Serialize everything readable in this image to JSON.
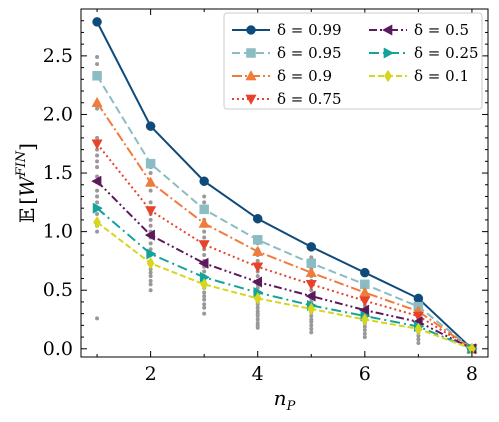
{
  "chart_data": {
    "type": "line",
    "xlabel": "n_P",
    "xlabel_main": "n",
    "xlabel_sub": "P",
    "ylabel": "E[W^{FIN}]",
    "ylabel_prefix": "𝔼",
    "ylabel_w": "W",
    "ylabel_sup": "FIN",
    "xlim": [
      0.7,
      8.3
    ],
    "ylim": [
      -0.07,
      2.9
    ],
    "xticks": [
      2,
      4,
      6,
      8
    ],
    "xtick_labels": [
      "2",
      "4",
      "6",
      "8"
    ],
    "yticks": [
      0.0,
      0.5,
      1.0,
      1.5,
      2.0,
      2.5
    ],
    "ytick_labels": [
      "0.0",
      "0.5",
      "1.0",
      "1.5",
      "2.0",
      "2.5"
    ],
    "legend_placement": "top-right",
    "x": [
      1,
      2,
      3,
      4,
      5,
      6,
      7,
      8
    ],
    "series": [
      {
        "name": "δ = 0.99",
        "color": "#0e4a7a",
        "dash": "",
        "marker": "circle",
        "values": [
          2.79,
          1.9,
          1.43,
          1.11,
          0.87,
          0.65,
          0.43,
          0.0
        ]
      },
      {
        "name": "δ = 0.95",
        "color": "#8bbcc4",
        "dash": "8,4",
        "marker": "square",
        "values": [
          2.33,
          1.58,
          1.19,
          0.93,
          0.73,
          0.55,
          0.36,
          0.0
        ]
      },
      {
        "name": "δ = 0.9",
        "color": "#f07c3c",
        "dash": "10,3,2,3",
        "marker": "triangle-up",
        "values": [
          2.1,
          1.42,
          1.07,
          0.83,
          0.65,
          0.48,
          0.32,
          0.0
        ]
      },
      {
        "name": "δ = 0.75",
        "color": "#e8432a",
        "dash": "2,3",
        "marker": "triangle-down",
        "values": [
          1.75,
          1.18,
          0.89,
          0.7,
          0.55,
          0.41,
          0.28,
          0.0
        ]
      },
      {
        "name": "δ = 0.5",
        "color": "#5c1a5c",
        "dash": "8,3,2,3,2,3",
        "marker": "triangle-left",
        "values": [
          1.43,
          0.97,
          0.73,
          0.57,
          0.45,
          0.33,
          0.23,
          0.0
        ]
      },
      {
        "name": "δ = 0.25",
        "color": "#13a39a",
        "dash": "10,4,2,4",
        "marker": "triangle-right",
        "values": [
          1.2,
          0.81,
          0.61,
          0.48,
          0.37,
          0.28,
          0.19,
          0.0
        ]
      },
      {
        "name": "δ = 0.1",
        "color": "#d6d61e",
        "dash": "6,3",
        "marker": "diamond",
        "values": [
          1.08,
          0.73,
          0.55,
          0.43,
          0.34,
          0.25,
          0.17,
          0.0
        ]
      }
    ],
    "scatter_background": {
      "color": "#999999",
      "points": [
        [
          1,
          2.49
        ],
        [
          1,
          2.43
        ],
        [
          1,
          2.05
        ],
        [
          1,
          1.8
        ],
        [
          1,
          1.7
        ],
        [
          1,
          1.65
        ],
        [
          1,
          1.6
        ],
        [
          1,
          1.55
        ],
        [
          1,
          1.47
        ],
        [
          1,
          1.35
        ],
        [
          1,
          1.3
        ],
        [
          1,
          1.25
        ],
        [
          1,
          1.15
        ],
        [
          1,
          1.05
        ],
        [
          1,
          1.0
        ],
        [
          1,
          0.26
        ],
        [
          2,
          1.55
        ],
        [
          2,
          1.5
        ],
        [
          2,
          1.4
        ],
        [
          2,
          1.35
        ],
        [
          2,
          1.25
        ],
        [
          2,
          1.15
        ],
        [
          2,
          1.1
        ],
        [
          2,
          1.05
        ],
        [
          2,
          1.0
        ],
        [
          2,
          0.95
        ],
        [
          2,
          0.9
        ],
        [
          2,
          0.85
        ],
        [
          2,
          0.8
        ],
        [
          2,
          0.75
        ],
        [
          2,
          0.72
        ],
        [
          2,
          0.68
        ],
        [
          2,
          0.65
        ],
        [
          2,
          0.62
        ],
        [
          2,
          0.58
        ],
        [
          2,
          0.55
        ],
        [
          2,
          0.5
        ],
        [
          3,
          1.3
        ],
        [
          3,
          1.25
        ],
        [
          3,
          1.18
        ],
        [
          3,
          1.1
        ],
        [
          3,
          1.05
        ],
        [
          3,
          1.0
        ],
        [
          3,
          0.95
        ],
        [
          3,
          0.9
        ],
        [
          3,
          0.85
        ],
        [
          3,
          0.8
        ],
        [
          3,
          0.75
        ],
        [
          3,
          0.7
        ],
        [
          3,
          0.66
        ],
        [
          3,
          0.62
        ],
        [
          3,
          0.58
        ],
        [
          3,
          0.55
        ],
        [
          3,
          0.52
        ],
        [
          3,
          0.48
        ],
        [
          3,
          0.45
        ],
        [
          3,
          0.42
        ],
        [
          3,
          0.38
        ],
        [
          3,
          0.35
        ],
        [
          3,
          0.3
        ],
        [
          4,
          0.95
        ],
        [
          4,
          0.9
        ],
        [
          4,
          0.85
        ],
        [
          4,
          0.8
        ],
        [
          4,
          0.75
        ],
        [
          4,
          0.7
        ],
        [
          4,
          0.66
        ],
        [
          4,
          0.62
        ],
        [
          4,
          0.58
        ],
        [
          4,
          0.55
        ],
        [
          4,
          0.52
        ],
        [
          4,
          0.48
        ],
        [
          4,
          0.45
        ],
        [
          4,
          0.42
        ],
        [
          4,
          0.4
        ],
        [
          4,
          0.38
        ],
        [
          4,
          0.35
        ],
        [
          4,
          0.32
        ],
        [
          4,
          0.3
        ],
        [
          4,
          0.28
        ],
        [
          4,
          0.25
        ],
        [
          4,
          0.22
        ],
        [
          4,
          0.2
        ],
        [
          4,
          0.18
        ],
        [
          5,
          0.78
        ],
        [
          5,
          0.72
        ],
        [
          5,
          0.68
        ],
        [
          5,
          0.62
        ],
        [
          5,
          0.58
        ],
        [
          5,
          0.55
        ],
        [
          5,
          0.5
        ],
        [
          5,
          0.46
        ],
        [
          5,
          0.43
        ],
        [
          5,
          0.4
        ],
        [
          5,
          0.37
        ],
        [
          5,
          0.34
        ],
        [
          5,
          0.31
        ],
        [
          5,
          0.28
        ],
        [
          5,
          0.25
        ],
        [
          5,
          0.23
        ],
        [
          5,
          0.2
        ],
        [
          5,
          0.17
        ],
        [
          5,
          0.14
        ],
        [
          6,
          0.55
        ],
        [
          6,
          0.5
        ],
        [
          6,
          0.47
        ],
        [
          6,
          0.43
        ],
        [
          6,
          0.4
        ],
        [
          6,
          0.37
        ],
        [
          6,
          0.34
        ],
        [
          6,
          0.31
        ],
        [
          6,
          0.28
        ],
        [
          6,
          0.25
        ],
        [
          6,
          0.22
        ],
        [
          6,
          0.19
        ],
        [
          6,
          0.16
        ],
        [
          6,
          0.13
        ],
        [
          6,
          0.1
        ],
        [
          7,
          0.36
        ],
        [
          7,
          0.32
        ],
        [
          7,
          0.29
        ],
        [
          7,
          0.26
        ],
        [
          7,
          0.23
        ],
        [
          7,
          0.2
        ],
        [
          7,
          0.17
        ],
        [
          7,
          0.14
        ],
        [
          7,
          0.11
        ],
        [
          7,
          0.08
        ],
        [
          7,
          0.05
        ],
        [
          8,
          0.02
        ],
        [
          8,
          0.01
        ],
        [
          8,
          0.0
        ],
        [
          8,
          -0.01
        ]
      ]
    }
  }
}
